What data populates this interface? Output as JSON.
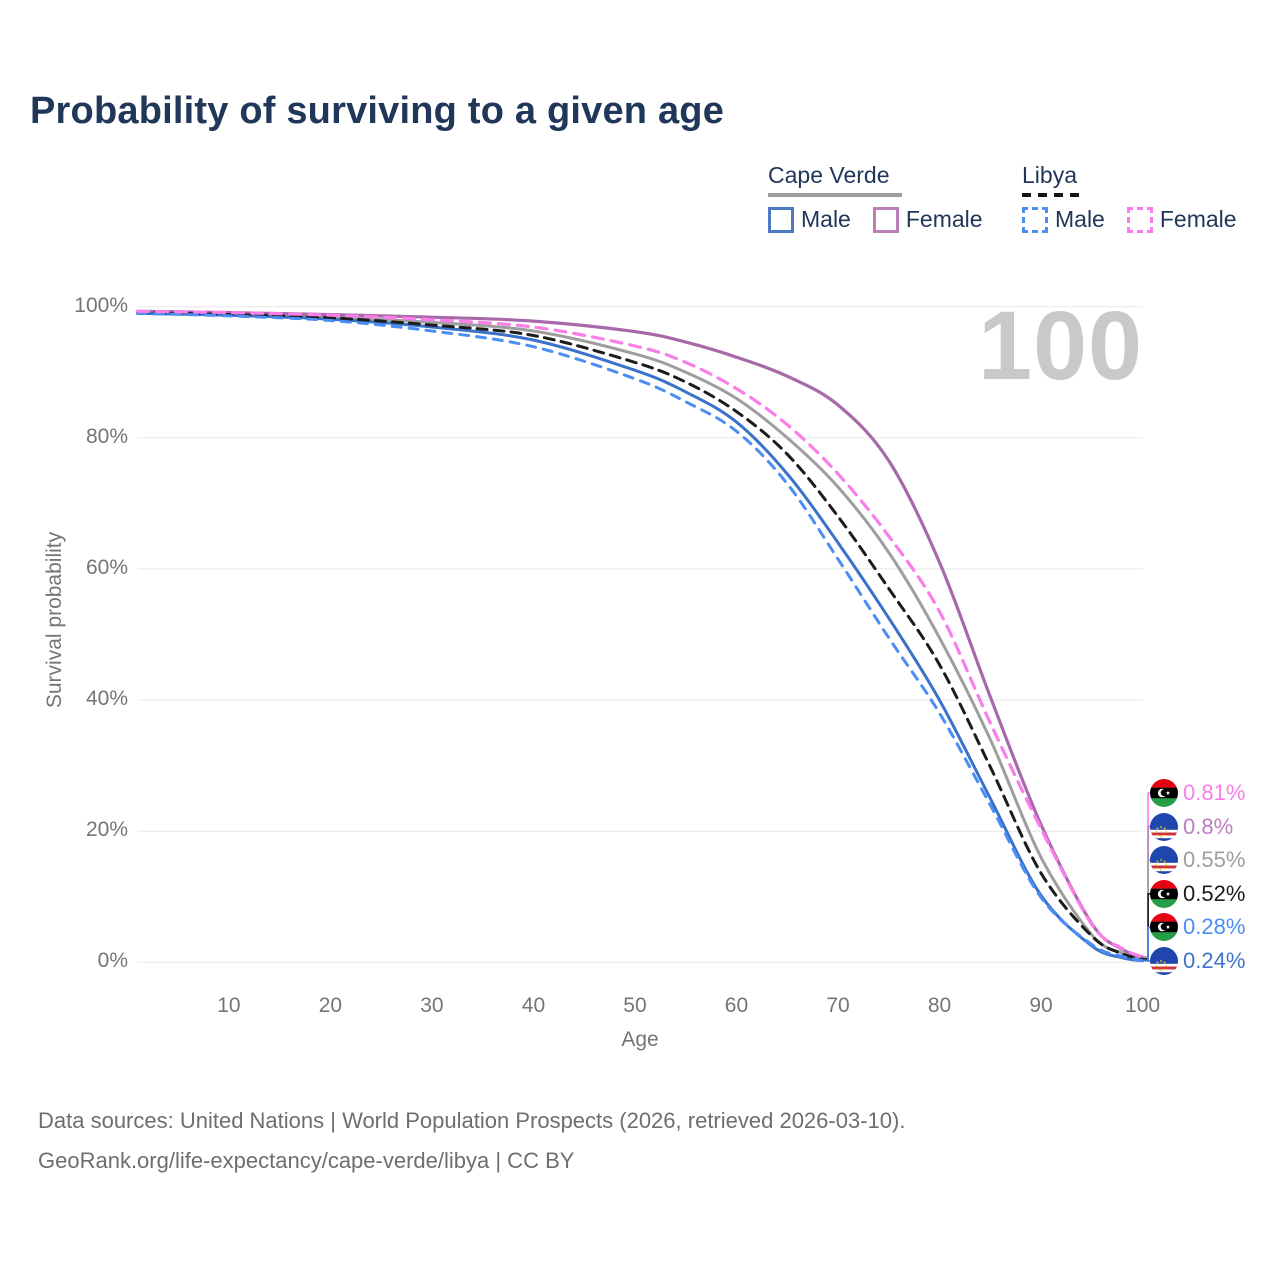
{
  "title": "Probability of surviving to a given age",
  "watermark": "100",
  "legend": {
    "groups": [
      {
        "label": "Cape Verde",
        "line_style": "solid",
        "line_color": "#9e9e9e",
        "items": [
          {
            "label": "Male",
            "color": "#4d7ac2",
            "style": "solid"
          },
          {
            "label": "Female",
            "color": "#bd7fb8",
            "style": "solid"
          }
        ]
      },
      {
        "label": "Libya",
        "line_style": "dashed",
        "line_color": "#141414",
        "items": [
          {
            "label": "Male",
            "color": "#4a8ef5",
            "style": "dashed"
          },
          {
            "label": "Female",
            "color": "#fa7de9",
            "style": "dashed"
          }
        ]
      }
    ]
  },
  "chart_data": {
    "type": "line",
    "title": "Probability of surviving to a given age",
    "x_label": "Age",
    "y_label": "Survival probability",
    "x_range": [
      1,
      100
    ],
    "y_range": [
      0,
      100
    ],
    "x_ticks": [
      10,
      20,
      30,
      40,
      50,
      60,
      70,
      80,
      90,
      100
    ],
    "y_ticks": [
      0,
      20,
      40,
      60,
      80,
      100
    ],
    "y_tick_suffix": "%",
    "grid": "horizontal",
    "legend_position": "top-right",
    "ages": [
      1,
      10,
      20,
      30,
      40,
      50,
      55,
      60,
      65,
      70,
      75,
      80,
      85,
      90,
      95,
      98,
      100
    ],
    "series": [
      {
        "id": "cape-verde-all",
        "country": "Cape Verde",
        "sex": "All",
        "color": "#9e9e9e",
        "dash": null,
        "width": 3,
        "values": [
          99.1,
          98.9,
          98.4,
          97.6,
          96.3,
          92.8,
          90.0,
          86.0,
          80.0,
          72.5,
          62.5,
          49.5,
          34.0,
          16.0,
          4.2,
          1.4,
          0.55
        ]
      },
      {
        "id": "cape-verde-female",
        "country": "Cape Verde",
        "sex": "Female",
        "color": "#a869aa",
        "dash": null,
        "width": 3.2,
        "values": [
          99.3,
          99.1,
          98.8,
          98.4,
          97.8,
          96.2,
          94.6,
          92.3,
          89.4,
          85.0,
          76.5,
          61.0,
          40.5,
          21.0,
          5.9,
          2.0,
          0.8
        ]
      },
      {
        "id": "cape-verde-male",
        "country": "Cape Verde",
        "sex": "Male",
        "color": "#3b72c9",
        "dash": null,
        "width": 3,
        "values": [
          99.0,
          98.7,
          98.1,
          96.9,
          94.9,
          90.3,
          87.0,
          82.4,
          74.5,
          64.0,
          52.5,
          40.0,
          25.0,
          10.2,
          2.5,
          0.7,
          0.24
        ]
      },
      {
        "id": "libya-all",
        "country": "Libya",
        "sex": "All",
        "color": "#1c1c1c",
        "dash": "10 7",
        "width": 3,
        "values": [
          99.1,
          98.8,
          98.3,
          97.2,
          95.6,
          91.5,
          88.5,
          84.0,
          77.5,
          68.0,
          57.0,
          45.4,
          29.8,
          13.6,
          4.0,
          1.3,
          0.52
        ]
      },
      {
        "id": "libya-male",
        "country": "Libya",
        "sex": "Male",
        "color": "#4a8ef5",
        "dash": "9 8",
        "width": 3,
        "values": [
          99.0,
          98.6,
          97.9,
          96.3,
          93.9,
          89.0,
          85.5,
          81.0,
          73.0,
          61.5,
          49.5,
          38.0,
          24.0,
          9.9,
          2.7,
          0.9,
          0.28
        ]
      },
      {
        "id": "libya-female",
        "country": "Libya",
        "sex": "Female",
        "color": "#fa7de9",
        "dash": "11 8",
        "width": 3.2,
        "values": [
          99.3,
          99.1,
          98.7,
          98.0,
          96.9,
          94.0,
          91.5,
          87.5,
          82.0,
          74.5,
          65.0,
          53.5,
          36.5,
          20.4,
          5.8,
          2.1,
          0.81
        ]
      }
    ],
    "end_labels": [
      {
        "series": "libya-female",
        "text": "0.81%",
        "color": "#fa7de9",
        "flag": "libya"
      },
      {
        "series": "cape-verde-female",
        "text": "0.8%",
        "color": "#bc7fbf",
        "flag": "cape-verde"
      },
      {
        "series": "cape-verde-all",
        "text": "0.55%",
        "color": "#9e9e9e",
        "flag": "cape-verde"
      },
      {
        "series": "libya-all",
        "text": "0.52%",
        "color": "#1c1c1c",
        "flag": "libya"
      },
      {
        "series": "libya-male",
        "text": "0.28%",
        "color": "#4a8ef5",
        "flag": "libya"
      },
      {
        "series": "cape-verde-male",
        "text": "0.24%",
        "color": "#3d74cc",
        "flag": "cape-verde"
      }
    ]
  },
  "footer": {
    "line1": "Data sources: United Nations | World Population Prospects (2026, retrieved 2026-03-10).",
    "line2": "GeoRank.org/life-expectancy/cape-verde/libya | CC BY"
  }
}
